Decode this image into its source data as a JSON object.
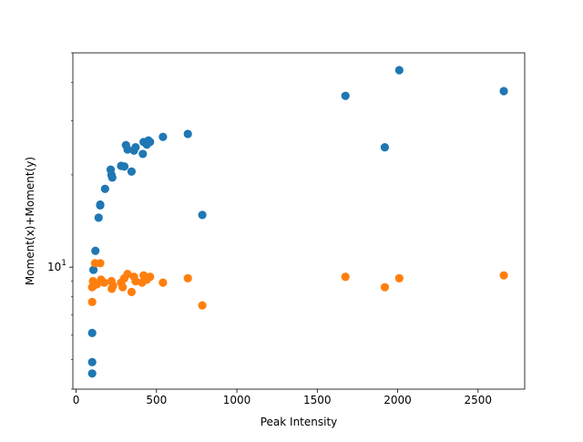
{
  "chart_data": {
    "type": "scatter",
    "title": "",
    "xlabel": "Peak Intensity",
    "ylabel": "Moment(x)+Moment(y)",
    "yscale": "log",
    "xlim": [
      -20,
      2790
    ],
    "ylim": [
      4.0,
      50.0
    ],
    "xticks": [
      0,
      500,
      1000,
      1500,
      2000,
      2500
    ],
    "xtick_labels": [
      "0",
      "500",
      "1000",
      "1500",
      "2000",
      "2500"
    ],
    "yticks": [
      10
    ],
    "ytick_labels": [
      "10^1"
    ],
    "grid": false,
    "legend": "none",
    "series": [
      {
        "color": "#1f77b4",
        "points": [
          [
            100,
            4.5
          ],
          [
            100,
            4.9
          ],
          [
            100,
            6.1
          ],
          [
            108,
            9.8
          ],
          [
            120,
            11.3
          ],
          [
            140,
            14.5
          ],
          [
            150,
            15.9
          ],
          [
            150,
            16.0
          ],
          [
            180,
            18.0
          ],
          [
            215,
            20.8
          ],
          [
            220,
            20.0
          ],
          [
            225,
            19.6
          ],
          [
            280,
            21.4
          ],
          [
            300,
            21.3
          ],
          [
            310,
            25.0
          ],
          [
            320,
            24.2
          ],
          [
            345,
            20.5
          ],
          [
            360,
            24.0
          ],
          [
            370,
            24.6
          ],
          [
            415,
            23.4
          ],
          [
            420,
            25.6
          ],
          [
            440,
            25.1
          ],
          [
            450,
            25.9
          ],
          [
            460,
            25.6
          ],
          [
            540,
            26.6
          ],
          [
            695,
            27.2
          ],
          [
            785,
            14.8
          ],
          [
            1675,
            36.2
          ],
          [
            1920,
            24.6
          ],
          [
            2010,
            43.9
          ],
          [
            2660,
            37.5
          ]
        ]
      },
      {
        "color": "#ff7f0e",
        "points": [
          [
            100,
            7.7
          ],
          [
            100,
            8.6
          ],
          [
            105,
            9.0
          ],
          [
            110,
            8.7
          ],
          [
            118,
            10.3
          ],
          [
            130,
            8.8
          ],
          [
            150,
            10.3
          ],
          [
            155,
            9.1
          ],
          [
            175,
            8.9
          ],
          [
            220,
            9.0
          ],
          [
            222,
            8.5
          ],
          [
            230,
            8.7
          ],
          [
            280,
            8.9
          ],
          [
            290,
            8.6
          ],
          [
            300,
            9.2
          ],
          [
            320,
            9.5
          ],
          [
            345,
            8.3
          ],
          [
            360,
            9.3
          ],
          [
            370,
            9.0
          ],
          [
            410,
            8.9
          ],
          [
            420,
            9.4
          ],
          [
            440,
            9.1
          ],
          [
            460,
            9.3
          ],
          [
            540,
            8.9
          ],
          [
            695,
            9.2
          ],
          [
            785,
            7.5
          ],
          [
            1675,
            9.3
          ],
          [
            1920,
            8.6
          ],
          [
            2010,
            9.2
          ],
          [
            2660,
            9.4
          ]
        ]
      }
    ]
  }
}
